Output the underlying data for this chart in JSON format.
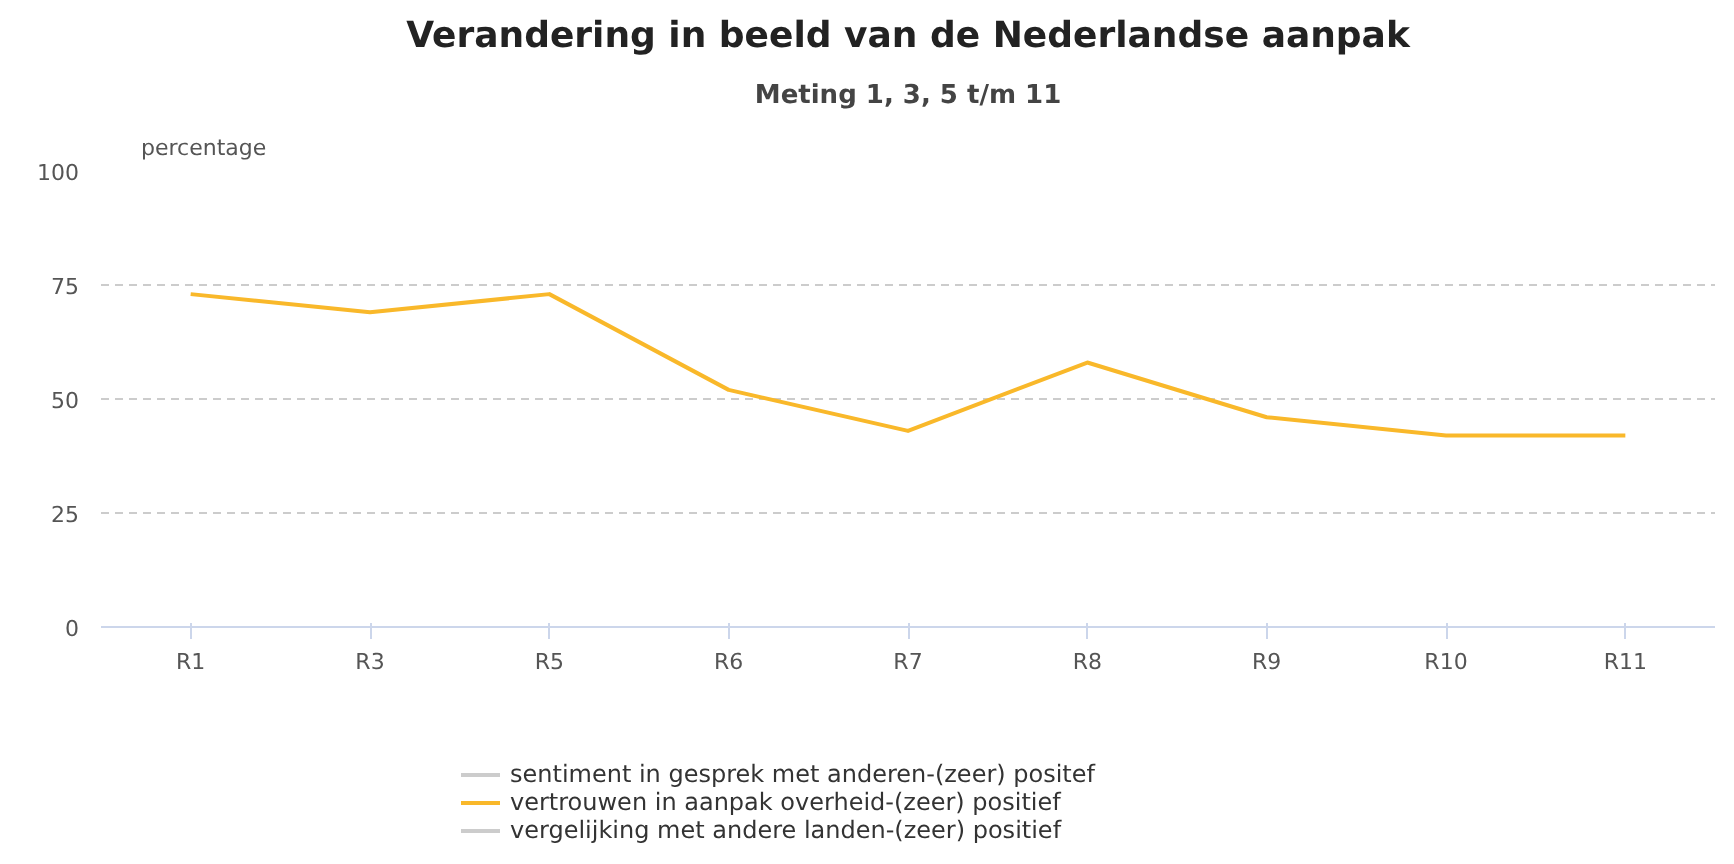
{
  "chart_data": {
    "type": "line",
    "title": "Verandering in beeld van de Nederlandse aanpak",
    "subtitle": "Meting 1, 3, 5 t/m 11",
    "ylabel": "percentage",
    "categories": [
      "R1",
      "R3",
      "R5",
      "R6",
      "R7",
      "R8",
      "R9",
      "R10",
      "R11"
    ],
    "series": [
      {
        "name": "sentiment in gesprek met anderen-(zeer) positef",
        "color": "#cccccc",
        "values": [
          null,
          null,
          null,
          null,
          null,
          null,
          null,
          null,
          null
        ]
      },
      {
        "name": "vertrouwen in aanpak overheid-(zeer) positief",
        "color": "#f9b82a",
        "values": [
          73,
          69,
          73,
          52,
          43,
          58,
          46,
          42,
          42
        ]
      },
      {
        "name": "vergelijking met andere landen-(zeer) positief",
        "color": "#cccccc",
        "values": [
          null,
          null,
          null,
          null,
          null,
          null,
          null,
          null,
          null
        ]
      }
    ],
    "ylim": [
      0,
      100
    ],
    "yticks": [
      0,
      25,
      50,
      75,
      100
    ],
    "grid": "y",
    "legend": "bottom",
    "marker": "none",
    "line_style": "solid"
  }
}
